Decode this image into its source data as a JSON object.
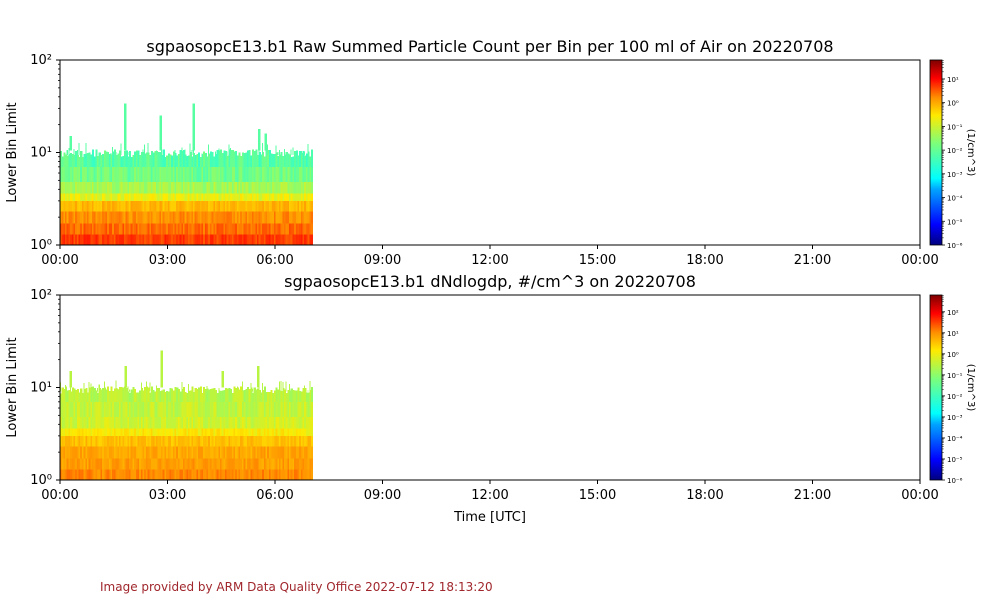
{
  "footer": "Image provided by ARM Data Quality Office 2022-07-12 18:13:20",
  "colormap": [
    "#00007f",
    "#0000ff",
    "#00a4ff",
    "#00ffff",
    "#7dff7a",
    "#ffea00",
    "#ff8c00",
    "#ff0000",
    "#7f0000"
  ],
  "chart_data": [
    {
      "type": "heatmap",
      "title": "sgpaosopcE13.b1 Raw Summed Particle Count per Bin per 100 ml of Air on 20220708",
      "xlabel": "",
      "ylabel": "Lower Bin Limit",
      "yscale": "log",
      "ylim": [
        1,
        100
      ],
      "ytick_labels": [
        "10⁰",
        "10¹",
        "10²"
      ],
      "xlim_hours": [
        0,
        24
      ],
      "xtick_labels": [
        "00:00",
        "03:00",
        "06:00",
        "09:00",
        "12:00",
        "15:00",
        "18:00",
        "21:00",
        "00:00"
      ],
      "data_range_hours": [
        0,
        7.05
      ],
      "colorbar": {
        "label": "(1/cm^3)",
        "log_min": -6,
        "log_max": 1.8,
        "tick_labels": [
          "10⁻⁶",
          "10⁻⁵",
          "10⁻⁴",
          "10⁻³",
          "10⁻²",
          "10⁻¹",
          "10⁰",
          "10¹"
        ],
        "tick_exponents": [
          -6,
          -5,
          -4,
          -3,
          -2,
          -1,
          0,
          1
        ]
      },
      "profile": [
        {
          "y0": 1.0,
          "y1": 1.3,
          "log_value": 0.4
        },
        {
          "y0": 1.3,
          "y1": 1.7,
          "log_value": 0.1
        },
        {
          "y0": 1.7,
          "y1": 2.3,
          "log_value": -0.2
        },
        {
          "y0": 2.3,
          "y1": 3.0,
          "log_value": -0.6
        },
        {
          "y0": 3.0,
          "y1": 3.6,
          "log_value": -1.3
        },
        {
          "y0": 3.6,
          "y1": 4.8,
          "log_value": -1.8
        },
        {
          "y0": 4.8,
          "y1": 7.0,
          "log_value": -2.2
        },
        {
          "y0": 7.0,
          "y1": 10.5,
          "log_value": -2.4
        }
      ],
      "spikes": [
        {
          "hour": 1.78,
          "top": 34
        },
        {
          "hour": 3.7,
          "top": 34
        },
        {
          "hour": 5.52,
          "top": 18
        },
        {
          "hour": 2.78,
          "top": 25
        },
        {
          "hour": 0.27,
          "top": 15
        },
        {
          "hour": 5.7,
          "top": 16
        }
      ]
    },
    {
      "type": "heatmap",
      "title": "sgpaosopcE13.b1 dNdlogdp, #/cm^3 on 20220708",
      "xlabel": "Time [UTC]",
      "ylabel": "Lower Bin Limit",
      "yscale": "log",
      "ylim": [
        1,
        100
      ],
      "ytick_labels": [
        "10⁰",
        "10¹",
        "10²"
      ],
      "xlim_hours": [
        0,
        24
      ],
      "xtick_labels": [
        "00:00",
        "03:00",
        "06:00",
        "09:00",
        "12:00",
        "15:00",
        "18:00",
        "21:00",
        "00:00"
      ],
      "data_range_hours": [
        0,
        7.05
      ],
      "colorbar": {
        "label": "(1/cm^3)",
        "log_min": -6,
        "log_max": 2.8,
        "tick_labels": [
          "10⁻⁶",
          "10⁻⁵",
          "10⁻⁴",
          "10⁻³",
          "10⁻²",
          "10⁻¹",
          "10⁰",
          "10¹",
          "10²"
        ],
        "tick_exponents": [
          -6,
          -5,
          -4,
          -3,
          -2,
          -1,
          0,
          1,
          2
        ]
      },
      "profile": [
        {
          "y0": 1.0,
          "y1": 1.3,
          "log_value": 0.6
        },
        {
          "y0": 1.3,
          "y1": 1.7,
          "log_value": 0.4
        },
        {
          "y0": 1.7,
          "y1": 2.3,
          "log_value": 0.3
        },
        {
          "y0": 2.3,
          "y1": 3.0,
          "log_value": 0.0
        },
        {
          "y0": 3.0,
          "y1": 3.6,
          "log_value": -0.5
        },
        {
          "y0": 3.6,
          "y1": 4.8,
          "log_value": -0.9
        },
        {
          "y0": 4.8,
          "y1": 7.0,
          "log_value": -1.0
        },
        {
          "y0": 7.0,
          "y1": 10.0,
          "log_value": -1.1
        }
      ],
      "spikes": [
        {
          "hour": 2.8,
          "top": 25
        },
        {
          "hour": 5.5,
          "top": 17
        },
        {
          "hour": 1.8,
          "top": 17
        },
        {
          "hour": 0.27,
          "top": 15
        },
        {
          "hour": 4.5,
          "top": 15
        }
      ]
    }
  ]
}
